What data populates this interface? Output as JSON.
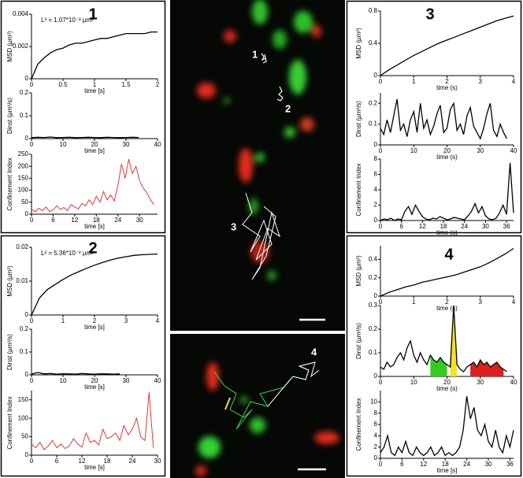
{
  "panel_titles": [
    "1",
    "2",
    "3",
    "4"
  ],
  "image_labels": [
    "1",
    "2",
    "3",
    "4"
  ],
  "chart_data": [
    {
      "type": "line",
      "xlabel": "time [s]",
      "ylabel": "MSD (µm²)",
      "annotation": "L² = 1.07*10⁻² µm²",
      "xlim": [
        0,
        2
      ],
      "xticks": [
        0,
        0.5,
        1,
        1.5,
        2
      ],
      "ylim": [
        0,
        0.004
      ],
      "yticks": [
        0,
        0.002,
        0.004
      ],
      "x": [
        0,
        0.1,
        0.2,
        0.3,
        0.4,
        0.5,
        0.6,
        0.7,
        0.8,
        0.9,
        1,
        1.1,
        1.2,
        1.3,
        1.4,
        1.5,
        1.6,
        1.7,
        1.8,
        1.9,
        2
      ],
      "series": [
        {
          "color": "#000000",
          "values": [
            0,
            0.0009,
            0.0013,
            0.0016,
            0.0018,
            0.0019,
            0.0021,
            0.0022,
            0.0022,
            0.0023,
            0.0024,
            0.0025,
            0.0025,
            0.0026,
            0.0027,
            0.0028,
            0.0028,
            0.0028,
            0.0028,
            0.0029,
            0.0029
          ]
        }
      ]
    },
    {
      "type": "line",
      "xlabel": "time [s]",
      "ylabel": "Dinst (µm²/s)",
      "xlim": [
        0,
        40
      ],
      "xticks": [
        0,
        10,
        20,
        30,
        40
      ],
      "ylim": [
        0,
        0.2
      ],
      "yticks": [
        0,
        0.1,
        0.2
      ],
      "x": [
        0,
        2,
        4,
        6,
        8,
        10,
        12,
        14,
        16,
        18,
        20,
        22,
        24,
        26,
        28,
        30,
        32,
        34
      ],
      "series": [
        {
          "color": "#000000",
          "values": [
            0.004,
            0.006,
            0.005,
            0.007,
            0.004,
            0.005,
            0.006,
            0.004,
            0.005,
            0.006,
            0.005,
            0.004,
            0.006,
            0.005,
            0.004,
            0.005,
            0.006,
            0.005
          ]
        }
      ]
    },
    {
      "type": "line",
      "xlabel": "time [s]",
      "ylabel": "Confinement Index",
      "xlim": [
        0,
        35
      ],
      "xticks": [
        0,
        6,
        12,
        18,
        24,
        30
      ],
      "ylim": [
        0,
        250
      ],
      "yticks": [
        0,
        50,
        100,
        150,
        200,
        250
      ],
      "x": [
        0,
        1,
        2,
        3,
        4,
        5,
        6,
        7,
        8,
        9,
        10,
        11,
        12,
        13,
        14,
        15,
        16,
        17,
        18,
        19,
        20,
        21,
        22,
        23,
        24,
        25,
        26,
        27,
        28,
        29,
        30,
        31,
        32,
        33,
        34
      ],
      "series": [
        {
          "color": "#e32222",
          "values": [
            20,
            10,
            25,
            15,
            30,
            12,
            18,
            35,
            20,
            28,
            15,
            40,
            30,
            22,
            45,
            35,
            60,
            40,
            75,
            50,
            95,
            60,
            80,
            55,
            120,
            210,
            150,
            230,
            170,
            200,
            140,
            110,
            90,
            60,
            40
          ]
        }
      ]
    },
    {
      "type": "line",
      "xlabel": "time [s]",
      "ylabel": "MSD (µm²)",
      "annotation": "L² = 5.36*10⁻² µm²",
      "xlim": [
        0,
        4
      ],
      "xticks": [
        0,
        1,
        2,
        3,
        4
      ],
      "ylim": [
        0,
        0.02
      ],
      "yticks": [
        0,
        0.01,
        0.02
      ],
      "x": [
        0,
        0.25,
        0.5,
        0.75,
        1,
        1.25,
        1.5,
        1.75,
        2,
        2.25,
        2.5,
        2.75,
        3,
        3.25,
        3.5,
        3.75,
        4
      ],
      "series": [
        {
          "color": "#000000",
          "values": [
            0,
            0.005,
            0.0075,
            0.009,
            0.0105,
            0.0118,
            0.0128,
            0.0138,
            0.0147,
            0.0155,
            0.0162,
            0.0168,
            0.0172,
            0.0176,
            0.0178,
            0.0179,
            0.018
          ]
        }
      ]
    },
    {
      "type": "line",
      "xlabel": "time [s]",
      "ylabel": "Dinst (µm²/s)",
      "xlim": [
        0,
        40
      ],
      "xticks": [
        0,
        10,
        20,
        30,
        40
      ],
      "ylim": [
        0,
        0.2
      ],
      "yticks": [
        0,
        0.1,
        0.2
      ],
      "x": [
        0,
        2,
        4,
        6,
        8,
        10,
        12,
        14,
        16,
        18,
        20,
        22,
        24,
        26,
        28
      ],
      "series": [
        {
          "color": "#000000",
          "values": [
            0.003,
            0.01,
            0.004,
            0.006,
            0.003,
            0.005,
            0.004,
            0.003,
            0.006,
            0.004,
            0.003,
            0.005,
            0.004,
            0.003,
            0.004
          ]
        }
      ]
    },
    {
      "type": "line",
      "xlabel": "time [s]",
      "ylabel": "Confinement Index",
      "xlim": [
        0,
        30
      ],
      "xticks": [
        0,
        6,
        12,
        18,
        24,
        30
      ],
      "ylim": [
        0,
        175
      ],
      "yticks": [
        0,
        50,
        100,
        150
      ],
      "x": [
        0,
        1,
        2,
        3,
        4,
        5,
        6,
        7,
        8,
        9,
        10,
        11,
        12,
        13,
        14,
        15,
        16,
        17,
        18,
        19,
        20,
        21,
        22,
        23,
        24,
        25,
        26,
        27,
        28,
        29
      ],
      "series": [
        {
          "color": "#e32222",
          "values": [
            30,
            20,
            35,
            15,
            25,
            40,
            20,
            30,
            18,
            25,
            45,
            30,
            22,
            60,
            35,
            40,
            28,
            70,
            45,
            50,
            60,
            40,
            80,
            55,
            70,
            100,
            50,
            40,
            170,
            20
          ]
        }
      ]
    },
    {
      "type": "line",
      "xlabel": "time (s)",
      "ylabel": "MSD (µm²)",
      "xlim": [
        0,
        4
      ],
      "xticks": [
        0,
        1,
        2,
        3,
        4
      ],
      "ylim": [
        0,
        0.8
      ],
      "yticks": [
        0,
        0.4,
        0.8
      ],
      "x": [
        0,
        0.25,
        0.5,
        0.75,
        1,
        1.25,
        1.5,
        1.75,
        2,
        2.25,
        2.5,
        2.75,
        3,
        3.25,
        3.5,
        3.75,
        4
      ],
      "series": [
        {
          "color": "#000000",
          "values": [
            0,
            0.07,
            0.13,
            0.19,
            0.25,
            0.3,
            0.35,
            0.4,
            0.44,
            0.48,
            0.52,
            0.56,
            0.6,
            0.64,
            0.68,
            0.71,
            0.74
          ]
        }
      ]
    },
    {
      "type": "line",
      "xlabel": "time (s)",
      "ylabel": "Dinst (µm²/s)",
      "xlim": [
        0,
        40
      ],
      "xticks": [
        0,
        10,
        20,
        30,
        40
      ],
      "ylim": [
        0,
        0.25
      ],
      "yticks": [
        0,
        0.1,
        0.2
      ],
      "x": [
        0,
        1,
        2,
        3,
        4,
        5,
        6,
        7,
        8,
        9,
        10,
        11,
        12,
        13,
        14,
        15,
        16,
        17,
        18,
        19,
        20,
        21,
        22,
        23,
        24,
        25,
        26,
        27,
        28,
        29,
        30,
        31,
        32,
        33,
        34,
        35,
        36,
        37,
        38
      ],
      "series": [
        {
          "color": "#000000",
          "values": [
            0.08,
            0.05,
            0.12,
            0.06,
            0.14,
            0.22,
            0.07,
            0.1,
            0.04,
            0.12,
            0.16,
            0.06,
            0.2,
            0.08,
            0.12,
            0.05,
            0.09,
            0.15,
            0.19,
            0.06,
            0.08,
            0.17,
            0.2,
            0.07,
            0.1,
            0.05,
            0.14,
            0.18,
            0.09,
            0.06,
            0.03,
            0.08,
            0.15,
            0.2,
            0.07,
            0.04,
            0.1,
            0.06,
            0.03
          ]
        }
      ]
    },
    {
      "type": "line",
      "xlabel": "time (s)",
      "ylabel": "Confinement Index",
      "xlim": [
        0,
        38
      ],
      "xticks": [
        0,
        6,
        12,
        18,
        24,
        30,
        36
      ],
      "ylim": [
        0,
        8
      ],
      "yticks": [
        0,
        2,
        4,
        6,
        8
      ],
      "x": [
        0,
        1,
        2,
        3,
        4,
        5,
        6,
        7,
        8,
        9,
        10,
        11,
        12,
        13,
        14,
        15,
        16,
        17,
        18,
        19,
        20,
        21,
        22,
        23,
        24,
        25,
        26,
        27,
        28,
        29,
        30,
        31,
        32,
        33,
        34,
        35,
        36,
        37,
        38
      ],
      "series": [
        {
          "color": "#000000",
          "values": [
            0,
            0.2,
            0.1,
            0.3,
            0,
            0.2,
            0.1,
            1.2,
            1.8,
            0.8,
            2,
            1.2,
            0.5,
            0.2,
            0.1,
            0.3,
            0.2,
            0.5,
            0.3,
            0.1,
            0.2,
            0.4,
            0.3,
            0.2,
            0.1,
            0.6,
            1.2,
            2.2,
            1,
            1.8,
            0.6,
            0.2,
            0.1,
            0.3,
            1,
            2,
            0.8,
            7.5,
            1
          ]
        }
      ]
    },
    {
      "type": "line",
      "xlabel": "time (s)",
      "ylabel": "MSD (µm²)",
      "xlim": [
        0,
        4
      ],
      "xticks": [
        0,
        1,
        2,
        3,
        4
      ],
      "ylim": [
        0,
        0.55
      ],
      "yticks": [
        0,
        0.2,
        0.4
      ],
      "x": [
        0,
        0.25,
        0.5,
        0.75,
        1,
        1.25,
        1.5,
        1.75,
        2,
        2.25,
        2.5,
        2.75,
        3,
        3.25,
        3.5,
        3.75,
        4
      ],
      "series": [
        {
          "color": "#000000",
          "values": [
            0,
            0.04,
            0.07,
            0.1,
            0.12,
            0.15,
            0.17,
            0.19,
            0.21,
            0.23,
            0.26,
            0.29,
            0.32,
            0.36,
            0.41,
            0.46,
            0.52
          ]
        }
      ]
    },
    {
      "type": "line",
      "xlabel": "time (s)",
      "ylabel": "Dinst (µm²/s)",
      "xlim": [
        0,
        40
      ],
      "xticks": [
        0,
        10,
        20,
        30,
        40
      ],
      "ylim": [
        0,
        0.3
      ],
      "yticks": [
        0,
        0.1,
        0.2,
        0.3
      ],
      "x": [
        0,
        1,
        2,
        3,
        4,
        5,
        6,
        7,
        8,
        9,
        10,
        11,
        12,
        13,
        14,
        15,
        16,
        17,
        18,
        19,
        20,
        21,
        22,
        23,
        24,
        25,
        26,
        27,
        28,
        29,
        30,
        31,
        32,
        33,
        34,
        35,
        36,
        37,
        38
      ],
      "series": [
        {
          "color": "#33cc22",
          "fill": true,
          "values": [
            null,
            null,
            null,
            null,
            null,
            null,
            null,
            null,
            null,
            null,
            null,
            null,
            null,
            null,
            null,
            0.09,
            0.07,
            0.06,
            0.08,
            0.06,
            0.05,
            null,
            null,
            null,
            null,
            null,
            null,
            null,
            null,
            null,
            null,
            null,
            null,
            null,
            null,
            null,
            null,
            null,
            null
          ]
        },
        {
          "color": "#f2e22a",
          "fill": true,
          "values": [
            null,
            null,
            null,
            null,
            null,
            null,
            null,
            null,
            null,
            null,
            null,
            null,
            null,
            null,
            null,
            null,
            null,
            null,
            null,
            null,
            null,
            0.04,
            0.3,
            0.05,
            null,
            null,
            null,
            null,
            null,
            null,
            null,
            null,
            null,
            null,
            null,
            null,
            null,
            null,
            null
          ]
        },
        {
          "color": "#dd1f1f",
          "fill": true,
          "values": [
            null,
            null,
            null,
            null,
            null,
            null,
            null,
            null,
            null,
            null,
            null,
            null,
            null,
            null,
            null,
            null,
            null,
            null,
            null,
            null,
            null,
            null,
            null,
            null,
            null,
            null,
            null,
            0.05,
            0.06,
            0.04,
            0.07,
            0.05,
            0.06,
            0.04,
            0.05,
            0.06,
            0.04,
            0.03,
            null
          ]
        },
        {
          "color": "#000000",
          "values": [
            0.04,
            0.03,
            0.06,
            0.04,
            0.05,
            0.08,
            0.1,
            0.07,
            0.12,
            0.15,
            0.09,
            0.06,
            0.1,
            0.07,
            0.05,
            0.09,
            0.07,
            0.06,
            0.08,
            0.06,
            0.05,
            0.04,
            0.3,
            0.05,
            0.03,
            0.02,
            0.04,
            0.05,
            0.06,
            0.04,
            0.07,
            0.05,
            0.06,
            0.04,
            0.05,
            0.06,
            0.04,
            0.03,
            0.02
          ]
        }
      ]
    },
    {
      "type": "line",
      "xlabel": "time [s]",
      "ylabel": "Confinement Index",
      "xlim": [
        0,
        37
      ],
      "xticks": [
        0,
        6,
        12,
        18,
        24,
        30,
        36
      ],
      "ylim": [
        0,
        12
      ],
      "yticks": [
        0,
        2,
        4,
        6,
        8,
        10
      ],
      "x": [
        0,
        1,
        2,
        3,
        4,
        5,
        6,
        7,
        8,
        9,
        10,
        11,
        12,
        13,
        14,
        15,
        16,
        17,
        18,
        19,
        20,
        21,
        22,
        23,
        24,
        25,
        26,
        27,
        28,
        29,
        30,
        31,
        32,
        33,
        34,
        35,
        36,
        37
      ],
      "series": [
        {
          "color": "#000000",
          "values": [
            1,
            2,
            4,
            1,
            0.5,
            2,
            1,
            3,
            1,
            0.5,
            2,
            1,
            0.5,
            1,
            2,
            0.5,
            1,
            2,
            0.5,
            1,
            0.5,
            1,
            2,
            5,
            11,
            7,
            9,
            5,
            4,
            6,
            3,
            2,
            5,
            2,
            1,
            4,
            2,
            5
          ]
        }
      ]
    }
  ]
}
